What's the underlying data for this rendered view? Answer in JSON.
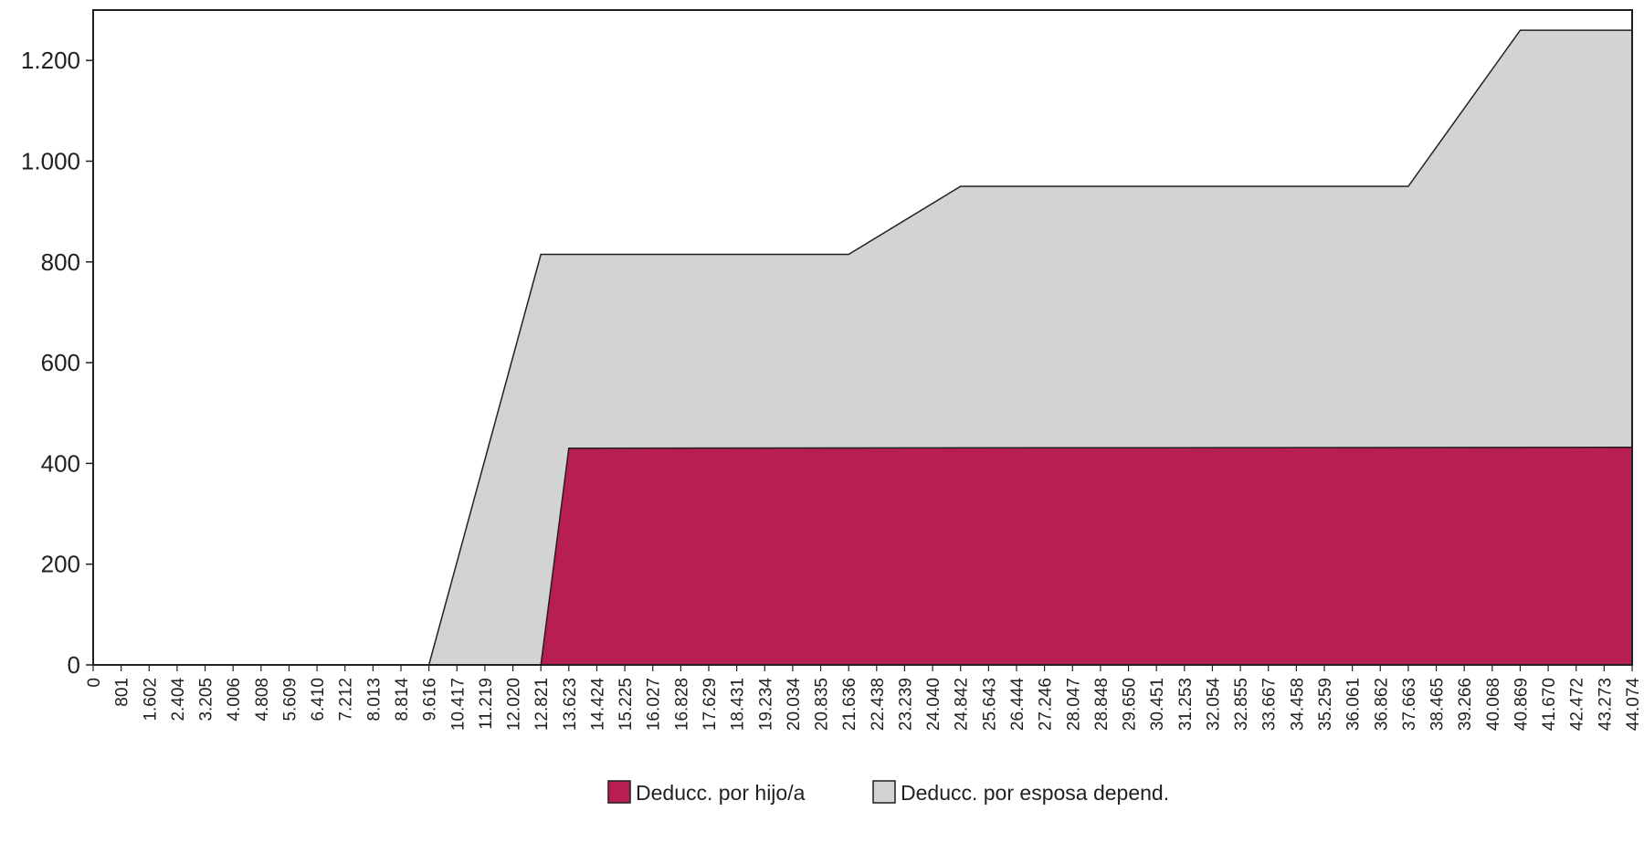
{
  "chart_data": {
    "type": "area",
    "title": "",
    "xlabel": "",
    "ylabel": "",
    "ylim": [
      0,
      1300
    ],
    "grid": false,
    "legend_position": "bottom-center",
    "x_tick_labels": [
      "0",
      "801",
      "1.602",
      "2.404",
      "3.205",
      "4.006",
      "4.808",
      "5.609",
      "6.410",
      "7.212",
      "8.013",
      "8.814",
      "9.616",
      "10.417",
      "11.219",
      "12.020",
      "12.821",
      "13.623",
      "14.424",
      "15.225",
      "16.027",
      "16.828",
      "17.629",
      "18.431",
      "19.234",
      "20.034",
      "20.835",
      "21.636",
      "22.438",
      "23.239",
      "24.040",
      "24.842",
      "25.643",
      "26.444",
      "27.246",
      "28.047",
      "28.848",
      "29.650",
      "30.451",
      "31.253",
      "32.054",
      "32.855",
      "33.667",
      "34.458",
      "35.259",
      "36.061",
      "36.862",
      "37.663",
      "38.465",
      "39.266",
      "40.068",
      "40.869",
      "41.670",
      "42.472",
      "43.273",
      "44.074"
    ],
    "y_ticks": [
      {
        "value": 0,
        "label": "0"
      },
      {
        "value": 200,
        "label": "200"
      },
      {
        "value": 400,
        "label": "400"
      },
      {
        "value": 600,
        "label": "600"
      },
      {
        "value": 800,
        "label": "800"
      },
      {
        "value": 1000,
        "label": "1.000"
      },
      {
        "value": 1200,
        "label": "1.200"
      }
    ],
    "series": [
      {
        "name": "Deducc. por hijo/a",
        "color": "#b71e52",
        "points": [
          {
            "x": 0,
            "y": 0
          },
          {
            "x": 12821,
            "y": 0
          },
          {
            "x": 13623,
            "y": 430
          },
          {
            "x": 44074,
            "y": 432
          }
        ]
      },
      {
        "name": "Deducc. por esposa depend.",
        "color": "#d1d3d4",
        "points": [
          {
            "x": 0,
            "y": 0
          },
          {
            "x": 9616,
            "y": 0
          },
          {
            "x": 12821,
            "y": 815
          },
          {
            "x": 21636,
            "y": 815
          },
          {
            "x": 24842,
            "y": 950
          },
          {
            "x": 37663,
            "y": 950
          },
          {
            "x": 40869,
            "y": 1260
          },
          {
            "x": 44074,
            "y": 1260
          }
        ]
      }
    ]
  }
}
